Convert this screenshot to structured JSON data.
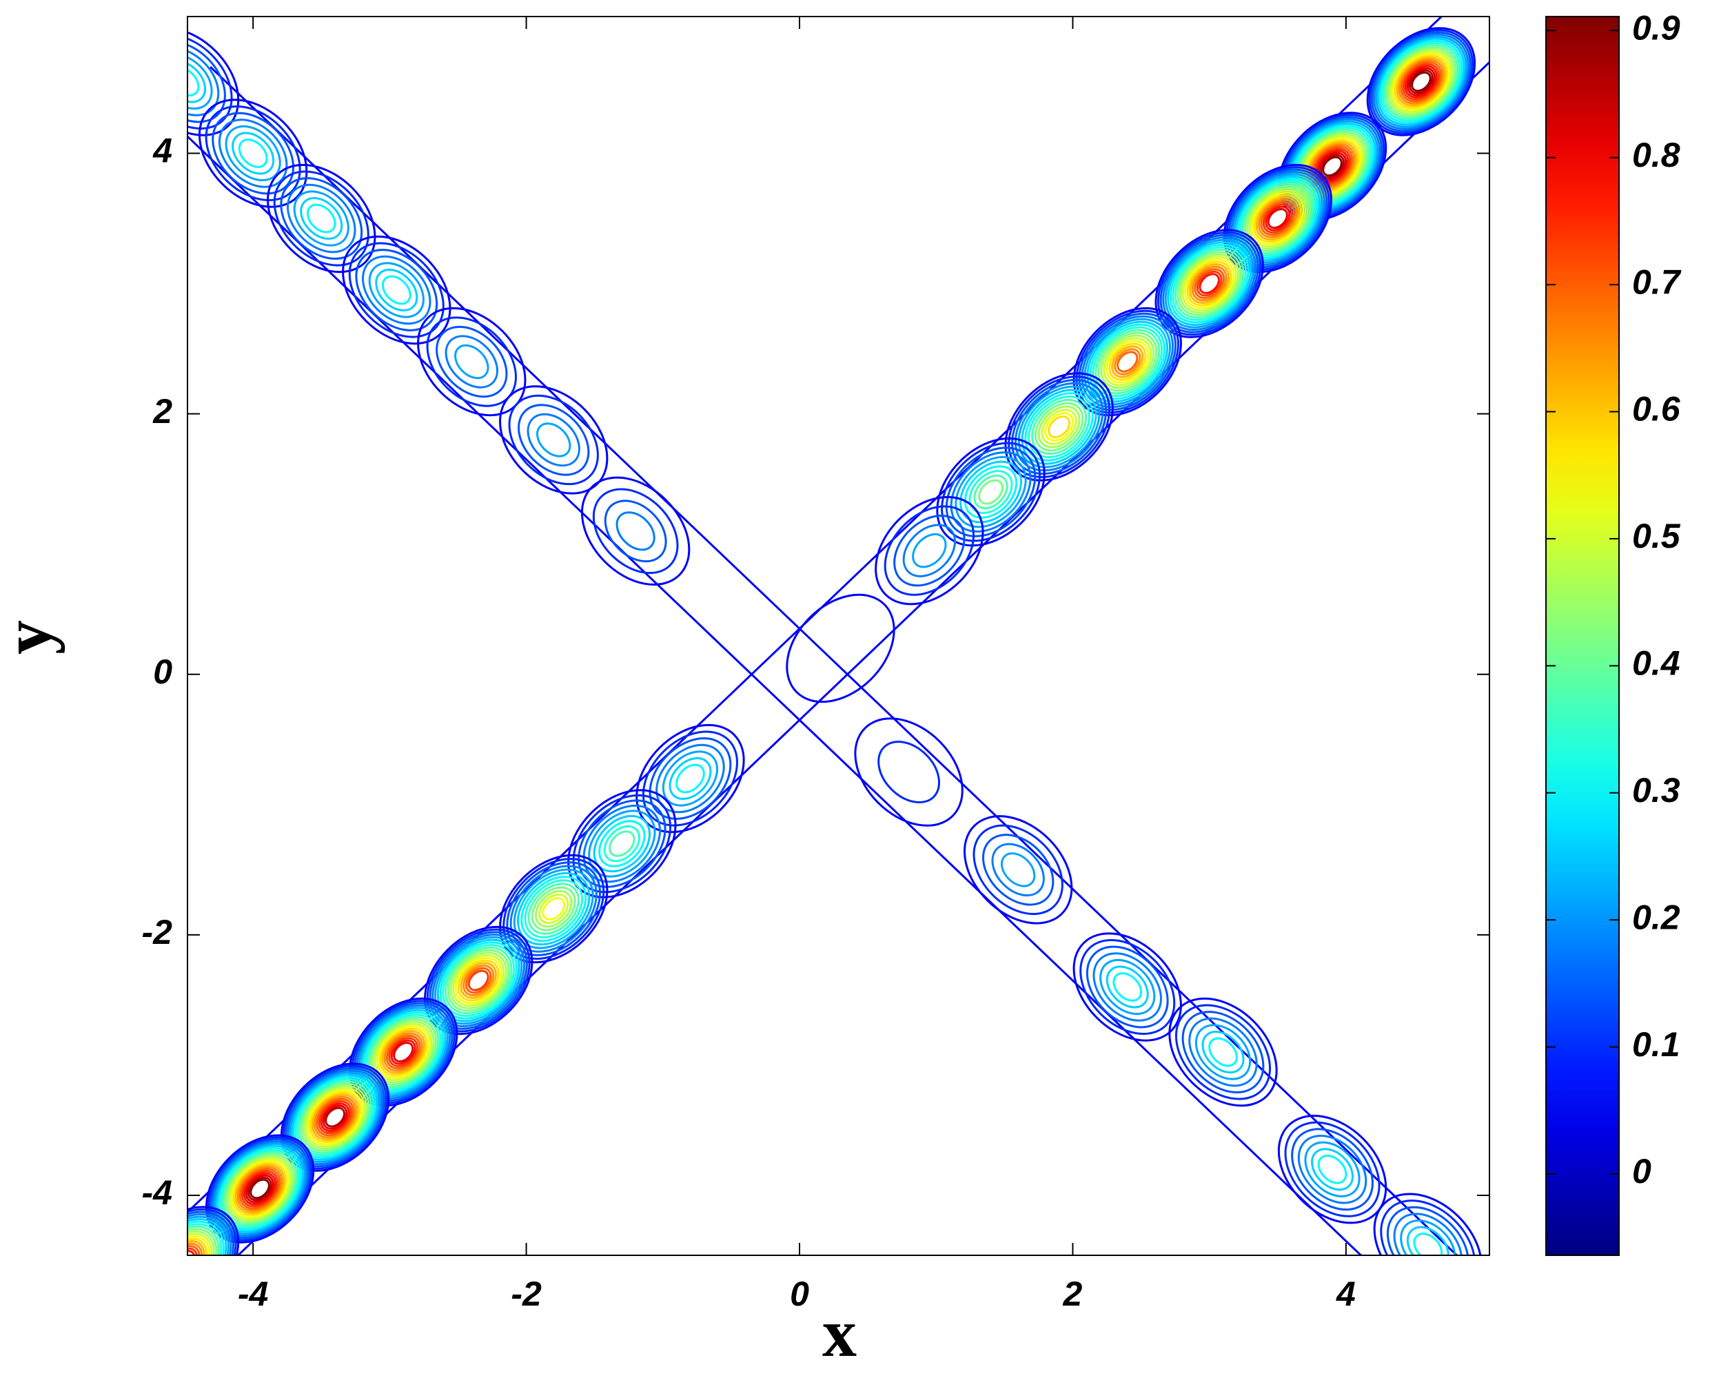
{
  "chart_data": {
    "type": "contour",
    "x_label": "x",
    "y_label": "y",
    "xlim": [
      -4.48,
      5.05
    ],
    "ylim": [
      -4.46,
      5.05
    ],
    "xticks": [
      -4,
      -2,
      0,
      2,
      4
    ],
    "yticks": [
      -4,
      -2,
      0,
      2,
      4
    ],
    "clim": [
      -0.064,
      0.911
    ],
    "cticks": [
      0,
      0.1,
      0.2,
      0.3,
      0.4,
      0.5,
      0.6,
      0.7,
      0.8,
      0.9
    ],
    "colormap": "jet",
    "peaks": [
      {
        "x": 4.55,
        "y": 4.55,
        "value": 0.9
      },
      {
        "x": 3.9,
        "y": 3.9,
        "value": 0.9
      },
      {
        "x": 3.5,
        "y": 3.5,
        "value": 0.85
      },
      {
        "x": 3.0,
        "y": 3.0,
        "value": 0.8
      },
      {
        "x": 2.4,
        "y": 2.4,
        "value": 0.7
      },
      {
        "x": 1.9,
        "y": 1.9,
        "value": 0.6
      },
      {
        "x": 1.4,
        "y": 1.4,
        "value": 0.45
      },
      {
        "x": 0.95,
        "y": 0.95,
        "value": 0.25
      },
      {
        "x": 0.3,
        "y": 0.2,
        "value": 0.05
      },
      {
        "x": -0.8,
        "y": -0.8,
        "value": 0.3
      },
      {
        "x": -1.3,
        "y": -1.3,
        "value": 0.4
      },
      {
        "x": -1.8,
        "y": -1.8,
        "value": 0.55
      },
      {
        "x": -2.35,
        "y": -2.35,
        "value": 0.75
      },
      {
        "x": -2.9,
        "y": -2.9,
        "value": 0.85
      },
      {
        "x": -3.4,
        "y": -3.4,
        "value": 0.88
      },
      {
        "x": -3.95,
        "y": -3.95,
        "value": 0.9
      },
      {
        "x": -4.5,
        "y": -4.5,
        "value": 0.8
      },
      {
        "x": -4.5,
        "y": 4.55,
        "value": 0.3
      },
      {
        "x": -4.0,
        "y": 4.0,
        "value": 0.3
      },
      {
        "x": -3.5,
        "y": 3.5,
        "value": 0.3
      },
      {
        "x": -2.95,
        "y": 2.95,
        "value": 0.3
      },
      {
        "x": -2.4,
        "y": 2.4,
        "value": 0.25
      },
      {
        "x": -1.8,
        "y": 1.8,
        "value": 0.25
      },
      {
        "x": -1.2,
        "y": 1.1,
        "value": 0.2
      },
      {
        "x": 0.8,
        "y": -0.75,
        "value": 0.1
      },
      {
        "x": 1.6,
        "y": -1.5,
        "value": 0.25
      },
      {
        "x": 2.4,
        "y": -2.4,
        "value": 0.3
      },
      {
        "x": 3.1,
        "y": -2.9,
        "value": 0.3
      },
      {
        "x": 3.9,
        "y": -3.8,
        "value": 0.3
      },
      {
        "x": 4.6,
        "y": -4.4,
        "value": 0.3
      }
    ]
  }
}
